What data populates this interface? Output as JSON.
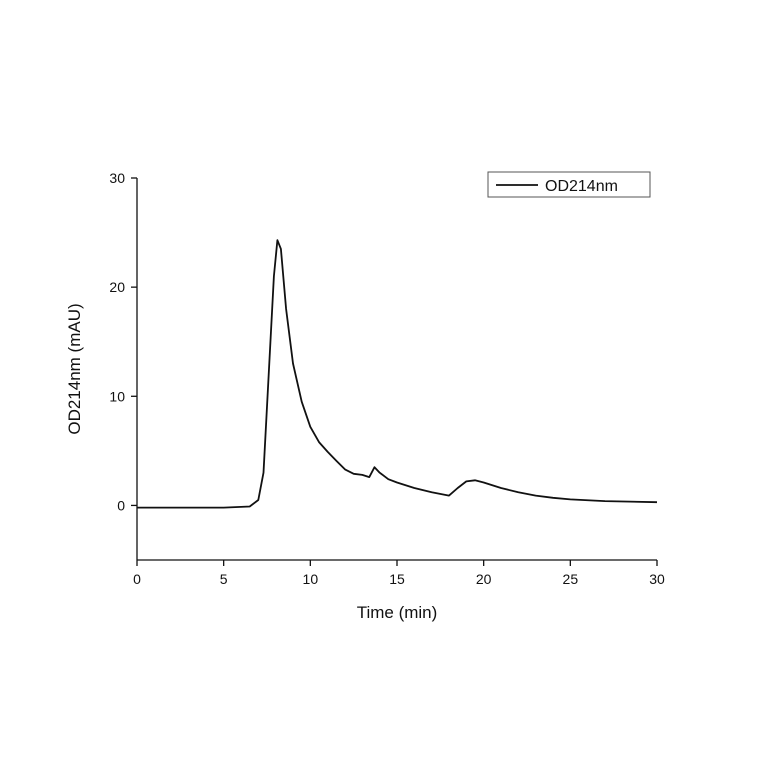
{
  "chart_data": {
    "type": "line",
    "x_label": "Time (min)",
    "y_label": "OD214nm (mAU)",
    "xlim": [
      0,
      30
    ],
    "xticks": [
      0,
      5,
      10,
      15,
      20,
      25,
      30
    ],
    "ylim": [
      -5,
      30
    ],
    "yticks": [
      0,
      10,
      20,
      30
    ],
    "legend": "top-right",
    "series": [
      {
        "name": "OD214nm",
        "color": "#111111",
        "x": [
          0,
          5,
          6.5,
          7,
          7.3,
          7.6,
          7.9,
          8.1,
          8.3,
          8.6,
          9,
          9.5,
          10,
          10.5,
          11,
          11.5,
          12,
          12.5,
          13,
          13.4,
          13.7,
          14,
          14.5,
          15,
          16,
          17,
          18,
          18.5,
          19,
          19.5,
          20,
          21,
          22,
          23,
          24,
          25,
          27,
          30
        ],
        "values": [
          -0.2,
          -0.2,
          -0.1,
          0.5,
          3,
          12,
          21,
          24.3,
          23.5,
          18,
          13,
          9.5,
          7.2,
          5.8,
          4.9,
          4.1,
          3.3,
          2.9,
          2.8,
          2.6,
          3.5,
          3.0,
          2.4,
          2.1,
          1.6,
          1.2,
          0.9,
          1.6,
          2.2,
          2.3,
          2.1,
          1.6,
          1.2,
          0.9,
          0.7,
          0.55,
          0.4,
          0.3
        ]
      }
    ]
  }
}
